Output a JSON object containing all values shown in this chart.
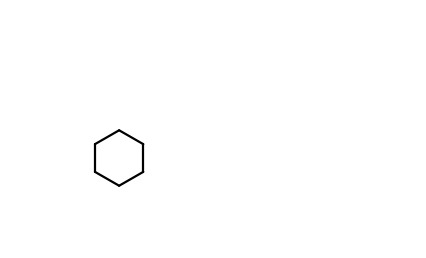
{
  "bg": "#ffffff",
  "lw": 1.5,
  "lw_double": 1.5,
  "font_size": 9,
  "fig_w": 4.26,
  "fig_h": 2.58,
  "dpi": 100
}
